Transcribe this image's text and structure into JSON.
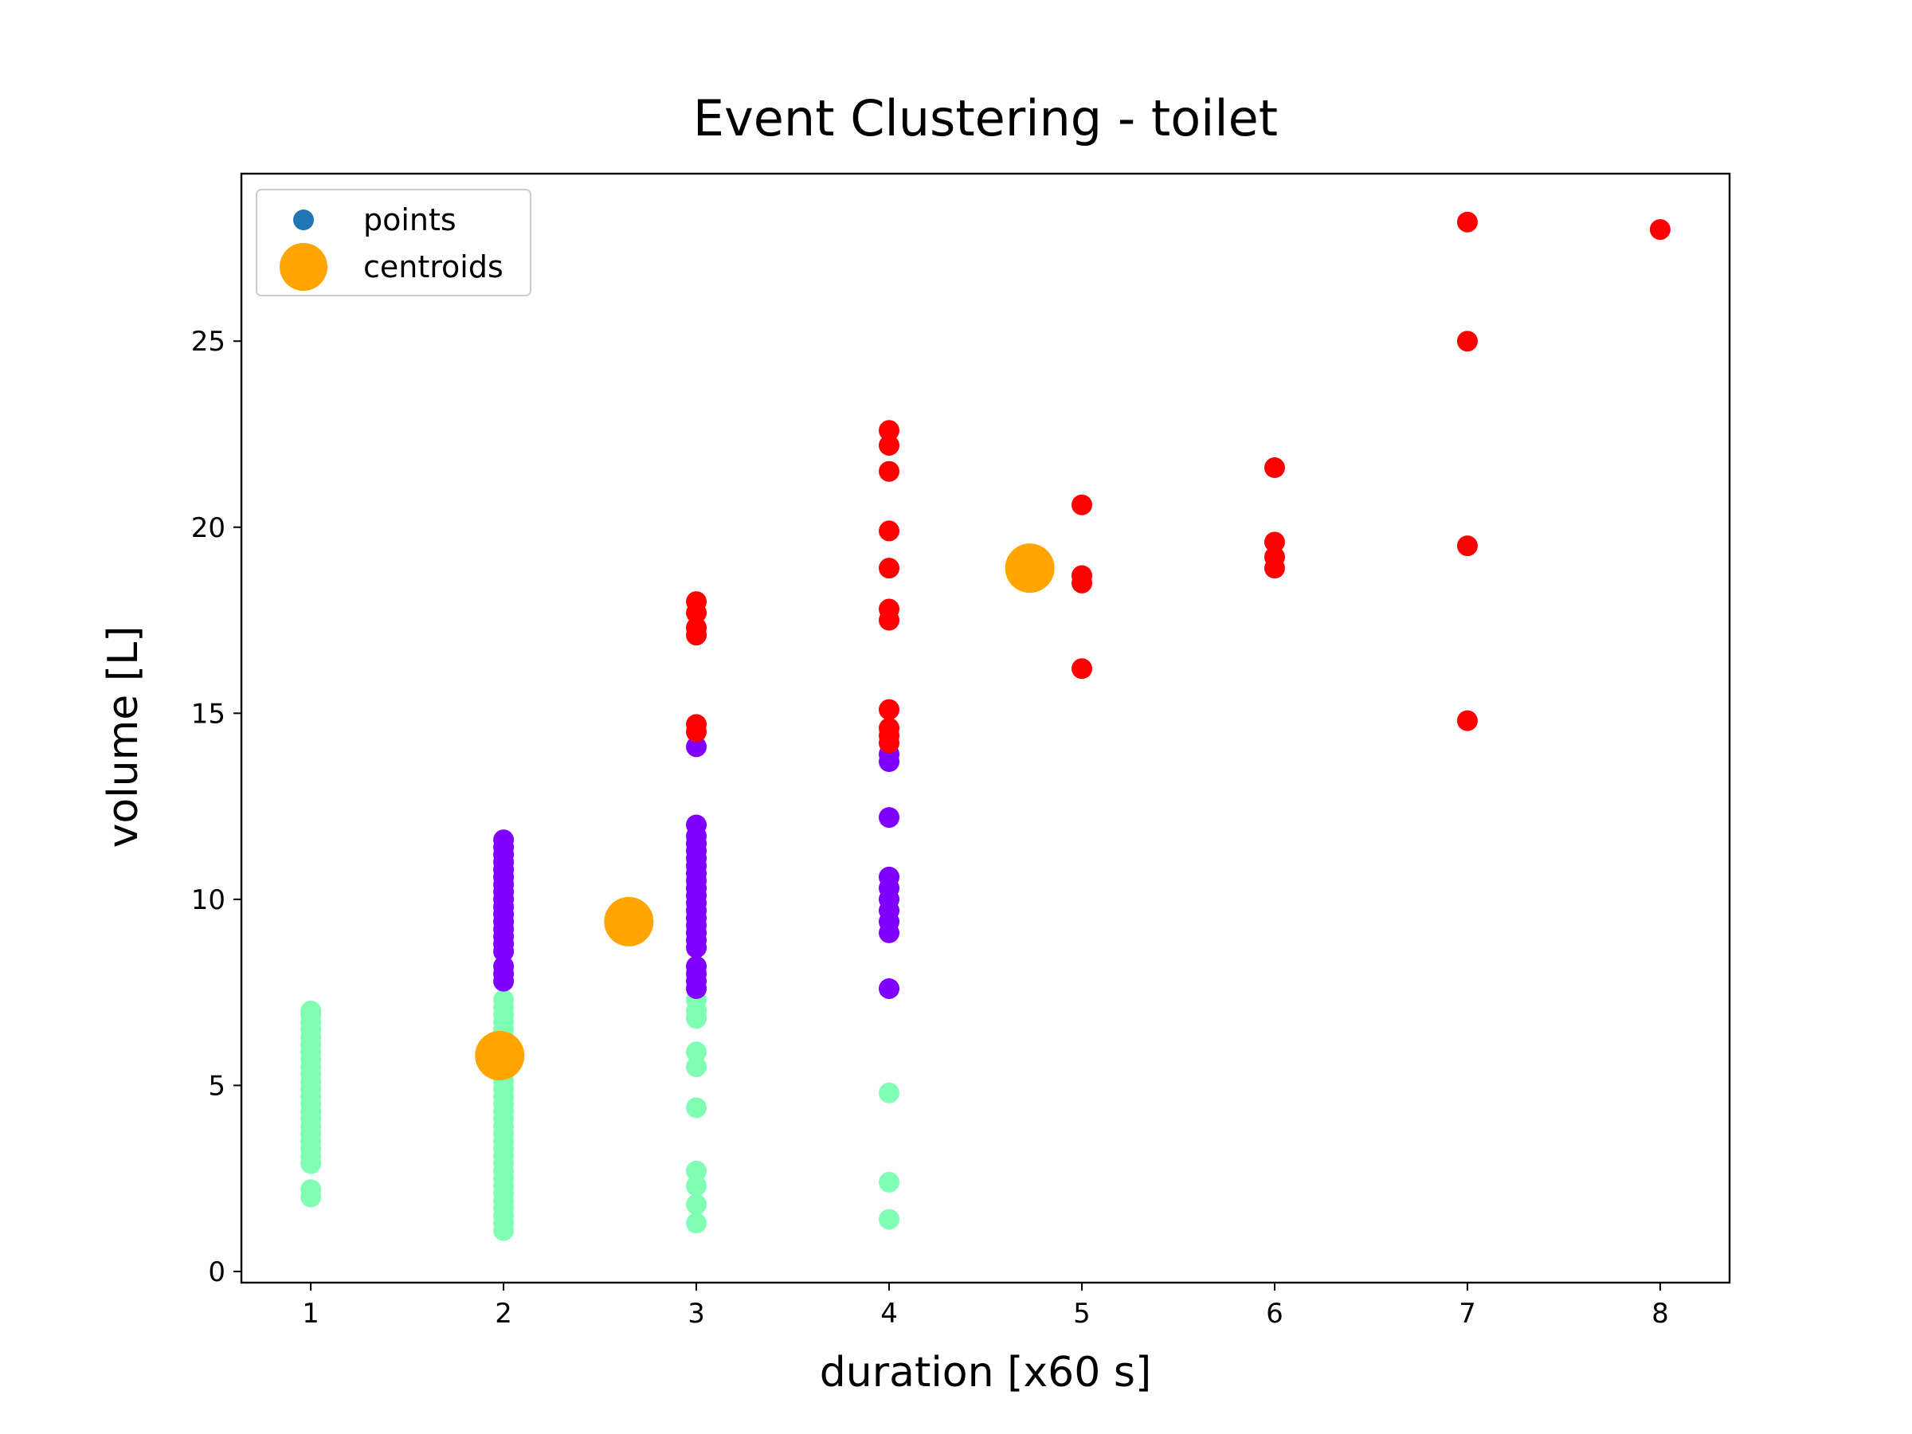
{
  "chart_data": {
    "type": "scatter",
    "title": "Event Clustering - toilet",
    "xlabel": "duration [x60 s]",
    "ylabel": "volume [L]",
    "xlim": [
      0.64,
      8.36
    ],
    "ylim": [
      -0.3,
      29.5
    ],
    "xticks": [
      1,
      2,
      3,
      4,
      5,
      6,
      7,
      8
    ],
    "yticks": [
      0,
      5,
      10,
      15,
      20,
      25
    ],
    "grid": false,
    "legend": {
      "placement": "top-left",
      "entries": [
        {
          "label": "points",
          "color": "#1f77b4",
          "marker": "small-circle"
        },
        {
          "label": "centroids",
          "color": "#ffa500",
          "marker": "large-circle"
        }
      ]
    },
    "clusters": [
      {
        "color": "#80ffb4",
        "points": [
          [
            1,
            2.0
          ],
          [
            1,
            2.2
          ],
          [
            1,
            2.9
          ],
          [
            1,
            3.1
          ],
          [
            1,
            3.3
          ],
          [
            1,
            3.5
          ],
          [
            1,
            3.7
          ],
          [
            1,
            3.9
          ],
          [
            1,
            4.1
          ],
          [
            1,
            4.3
          ],
          [
            1,
            4.5
          ],
          [
            1,
            4.7
          ],
          [
            1,
            4.9
          ],
          [
            1,
            5.1
          ],
          [
            1,
            5.3
          ],
          [
            1,
            5.5
          ],
          [
            1,
            5.7
          ],
          [
            1,
            5.9
          ],
          [
            1,
            6.1
          ],
          [
            1,
            6.3
          ],
          [
            1,
            6.5
          ],
          [
            1,
            6.7
          ],
          [
            1,
            6.9
          ],
          [
            1,
            7.0
          ],
          [
            2,
            1.1
          ],
          [
            2,
            1.3
          ],
          [
            2,
            1.5
          ],
          [
            2,
            1.7
          ],
          [
            2,
            1.9
          ],
          [
            2,
            2.1
          ],
          [
            2,
            2.3
          ],
          [
            2,
            2.5
          ],
          [
            2,
            2.7
          ],
          [
            2,
            2.9
          ],
          [
            2,
            3.1
          ],
          [
            2,
            3.3
          ],
          [
            2,
            3.5
          ],
          [
            2,
            3.7
          ],
          [
            2,
            3.9
          ],
          [
            2,
            4.1
          ],
          [
            2,
            4.3
          ],
          [
            2,
            4.5
          ],
          [
            2,
            4.7
          ],
          [
            2,
            4.9
          ],
          [
            2,
            5.1
          ],
          [
            2,
            5.3
          ],
          [
            2,
            5.5
          ],
          [
            2,
            5.7
          ],
          [
            2,
            5.9
          ],
          [
            2,
            6.1
          ],
          [
            2,
            6.3
          ],
          [
            2,
            6.5
          ],
          [
            2,
            6.7
          ],
          [
            2,
            6.9
          ],
          [
            2,
            7.1
          ],
          [
            2,
            7.3
          ],
          [
            3,
            1.3
          ],
          [
            3,
            1.8
          ],
          [
            3,
            2.3
          ],
          [
            3,
            2.7
          ],
          [
            3,
            4.4
          ],
          [
            3,
            5.5
          ],
          [
            3,
            5.9
          ],
          [
            3,
            6.8
          ],
          [
            3,
            7.0
          ],
          [
            3,
            7.3
          ],
          [
            4,
            1.4
          ],
          [
            4,
            2.4
          ],
          [
            4,
            4.8
          ]
        ]
      },
      {
        "color": "#8000ff",
        "points": [
          [
            2,
            7.8
          ],
          [
            2,
            8.0
          ],
          [
            2,
            8.2
          ],
          [
            2,
            8.6
          ],
          [
            2,
            8.8
          ],
          [
            2,
            9.0
          ],
          [
            2,
            9.2
          ],
          [
            2,
            9.4
          ],
          [
            2,
            9.6
          ],
          [
            2,
            9.8
          ],
          [
            2,
            10.0
          ],
          [
            2,
            10.2
          ],
          [
            2,
            10.4
          ],
          [
            2,
            10.6
          ],
          [
            2,
            10.8
          ],
          [
            2,
            11.0
          ],
          [
            2,
            11.2
          ],
          [
            2,
            11.4
          ],
          [
            2,
            11.6
          ],
          [
            3,
            7.6
          ],
          [
            3,
            7.8
          ],
          [
            3,
            8.0
          ],
          [
            3,
            8.2
          ],
          [
            3,
            8.7
          ],
          [
            3,
            8.9
          ],
          [
            3,
            9.1
          ],
          [
            3,
            9.3
          ],
          [
            3,
            9.5
          ],
          [
            3,
            9.7
          ],
          [
            3,
            9.9
          ],
          [
            3,
            10.1
          ],
          [
            3,
            10.3
          ],
          [
            3,
            10.5
          ],
          [
            3,
            10.7
          ],
          [
            3,
            10.9
          ],
          [
            3,
            11.1
          ],
          [
            3,
            11.3
          ],
          [
            3,
            11.5
          ],
          [
            3,
            11.7
          ],
          [
            3,
            12.0
          ],
          [
            3,
            14.1
          ],
          [
            4,
            7.6
          ],
          [
            4,
            9.1
          ],
          [
            4,
            9.4
          ],
          [
            4,
            9.7
          ],
          [
            4,
            10.0
          ],
          [
            4,
            10.3
          ],
          [
            4,
            10.6
          ],
          [
            4,
            12.2
          ],
          [
            4,
            13.7
          ],
          [
            4,
            13.9
          ]
        ]
      },
      {
        "color": "#ff0000",
        "points": [
          [
            3,
            14.5
          ],
          [
            3,
            14.7
          ],
          [
            3,
            17.1
          ],
          [
            3,
            17.3
          ],
          [
            3,
            17.7
          ],
          [
            3,
            18.0
          ],
          [
            4,
            14.2
          ],
          [
            4,
            14.4
          ],
          [
            4,
            14.6
          ],
          [
            4,
            15.1
          ],
          [
            4,
            17.5
          ],
          [
            4,
            17.8
          ],
          [
            4,
            18.9
          ],
          [
            4,
            19.9
          ],
          [
            4,
            21.5
          ],
          [
            4,
            22.2
          ],
          [
            4,
            22.6
          ],
          [
            5,
            16.2
          ],
          [
            5,
            18.5
          ],
          [
            5,
            18.7
          ],
          [
            5,
            20.6
          ],
          [
            6,
            18.9
          ],
          [
            6,
            19.2
          ],
          [
            6,
            19.6
          ],
          [
            6,
            21.6
          ],
          [
            7,
            14.8
          ],
          [
            7,
            19.5
          ],
          [
            7,
            25.0
          ],
          [
            7,
            28.2
          ],
          [
            8,
            28.0
          ]
        ]
      }
    ],
    "centroids": {
      "color": "#ffa500",
      "points": [
        [
          1.98,
          5.8
        ],
        [
          2.65,
          9.4
        ],
        [
          4.73,
          18.9
        ]
      ]
    }
  }
}
